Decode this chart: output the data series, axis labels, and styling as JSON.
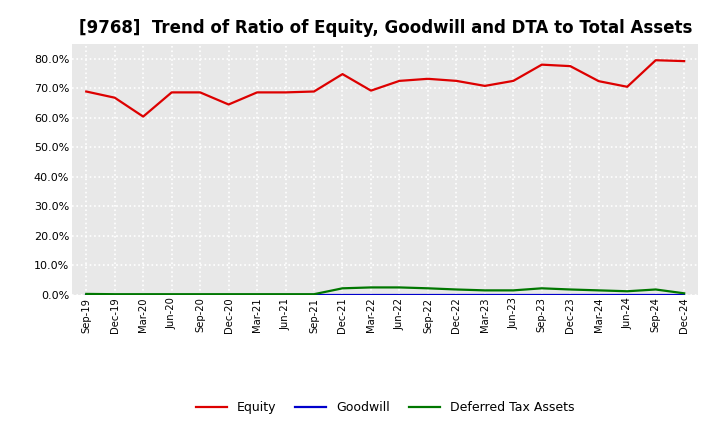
{
  "title": "[9768]  Trend of Ratio of Equity, Goodwill and DTA to Total Assets",
  "x_labels": [
    "Sep-19",
    "Dec-19",
    "Mar-20",
    "Jun-20",
    "Sep-20",
    "Dec-20",
    "Mar-21",
    "Jun-21",
    "Sep-21",
    "Dec-21",
    "Mar-22",
    "Jun-22",
    "Sep-22",
    "Dec-22",
    "Mar-23",
    "Jun-23",
    "Sep-23",
    "Dec-23",
    "Mar-24",
    "Jun-24",
    "Sep-24",
    "Dec-24"
  ],
  "equity": [
    0.689,
    0.668,
    0.604,
    0.686,
    0.686,
    0.645,
    0.686,
    0.686,
    0.689,
    0.748,
    0.692,
    0.725,
    0.732,
    0.725,
    0.708,
    0.725,
    0.78,
    0.775,
    0.724,
    0.705,
    0.795,
    0.792
  ],
  "goodwill": [
    0.0,
    0.0,
    0.0,
    0.0,
    0.0,
    0.0,
    0.0,
    0.0,
    0.0,
    0.0,
    0.0,
    0.0,
    0.0,
    0.0,
    0.0,
    0.0,
    0.0,
    0.0,
    0.0,
    0.0,
    0.0,
    0.0
  ],
  "dta": [
    0.003,
    0.002,
    0.002,
    0.002,
    0.002,
    0.002,
    0.002,
    0.002,
    0.002,
    0.022,
    0.025,
    0.025,
    0.022,
    0.018,
    0.015,
    0.015,
    0.022,
    0.018,
    0.015,
    0.012,
    0.018,
    0.005
  ],
  "equity_color": "#dd0000",
  "goodwill_color": "#0000cc",
  "dta_color": "#007700",
  "bg_color": "#ffffff",
  "plot_bg_color": "#e8e8e8",
  "grid_color": "#ffffff",
  "ylim": [
    0.0,
    0.85
  ],
  "yticks": [
    0.0,
    0.1,
    0.2,
    0.3,
    0.4,
    0.5,
    0.6,
    0.7,
    0.8
  ],
  "title_fontsize": 12,
  "legend_labels": [
    "Equity",
    "Goodwill",
    "Deferred Tax Assets"
  ],
  "linewidth": 1.6
}
